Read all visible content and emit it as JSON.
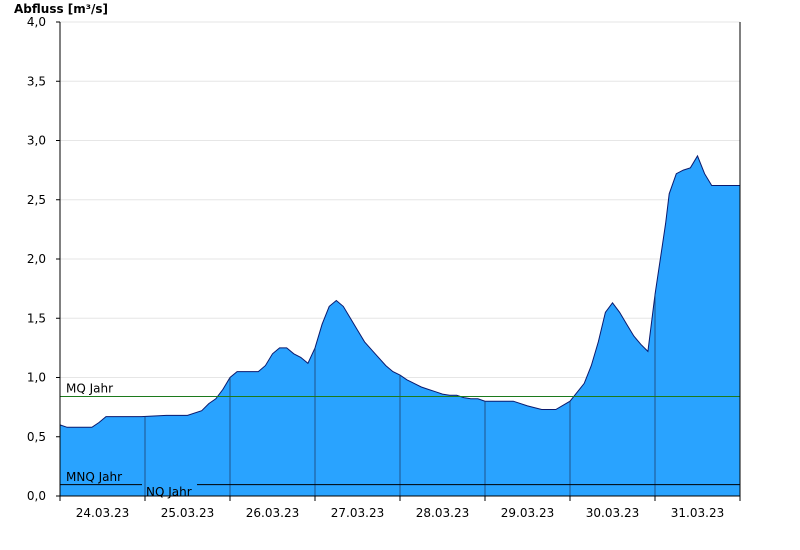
{
  "chart_data": {
    "type": "area",
    "ylabel": "Abfluss [m³/s]",
    "ylim": [
      0,
      4.0
    ],
    "yticks": [
      {
        "value": 0.0,
        "label": "0,0"
      },
      {
        "value": 0.5,
        "label": "0,5"
      },
      {
        "value": 1.0,
        "label": "1,0"
      },
      {
        "value": 1.5,
        "label": "1,5"
      },
      {
        "value": 2.0,
        "label": "2,0"
      },
      {
        "value": 2.5,
        "label": "2,5"
      },
      {
        "value": 3.0,
        "label": "3,0"
      },
      {
        "value": 3.5,
        "label": "3,5"
      },
      {
        "value": 4.0,
        "label": "4,0"
      }
    ],
    "x_start": "2023-03-24T00:00",
    "x_end": "2023-04-01T00:00",
    "xticks": [
      "24.03.23",
      "25.03.23",
      "26.03.23",
      "27.03.23",
      "28.03.23",
      "29.03.23",
      "30.03.23",
      "31.03.23"
    ],
    "grid": true,
    "fill_color": "#29a3ff",
    "line_color": "#0a1a6e",
    "reference_lines": [
      {
        "label": "MQ Jahr",
        "value": 0.84,
        "color": "#1c7a1c"
      },
      {
        "label": "MNQ Jahr",
        "value": 0.1,
        "color": "#000000"
      },
      {
        "label": "NQ Jahr",
        "value": 0.1,
        "color": "#000000"
      }
    ],
    "series": [
      {
        "x": [
          "2023-03-24T00:00",
          "2023-03-24T02:00",
          "2023-03-24T04:00",
          "2023-03-24T06:00",
          "2023-03-24T09:00",
          "2023-03-24T11:00",
          "2023-03-24T13:00",
          "2023-03-24T16:00",
          "2023-03-24T18:00",
          "2023-03-24T20:00",
          "2023-03-24T23:00",
          "2023-03-25T06:00",
          "2023-03-25T12:00",
          "2023-03-25T16:00",
          "2023-03-25T18:00",
          "2023-03-25T20:00",
          "2023-03-25T22:00",
          "2023-03-26T00:00",
          "2023-03-26T02:00",
          "2023-03-26T04:00",
          "2023-03-26T06:00",
          "2023-03-26T08:00",
          "2023-03-26T10:00",
          "2023-03-26T12:00",
          "2023-03-26T14:00",
          "2023-03-26T16:00",
          "2023-03-26T18:00",
          "2023-03-26T20:00",
          "2023-03-26T22:00",
          "2023-03-27T00:00",
          "2023-03-27T02:00",
          "2023-03-27T04:00",
          "2023-03-27T06:00",
          "2023-03-27T08:00",
          "2023-03-27T10:00",
          "2023-03-27T12:00",
          "2023-03-27T14:00",
          "2023-03-27T17:00",
          "2023-03-27T20:00",
          "2023-03-27T22:00",
          "2023-03-28T00:00",
          "2023-03-28T02:00",
          "2023-03-28T04:00",
          "2023-03-28T06:00",
          "2023-03-28T08:00",
          "2023-03-28T10:00",
          "2023-03-28T12:00",
          "2023-03-28T14:00",
          "2023-03-28T16:00",
          "2023-03-28T18:00",
          "2023-03-28T20:00",
          "2023-03-28T22:00",
          "2023-03-29T00:00",
          "2023-03-29T04:00",
          "2023-03-29T08:00",
          "2023-03-29T12:00",
          "2023-03-29T16:00",
          "2023-03-29T20:00",
          "2023-03-30T00:00",
          "2023-03-30T04:00",
          "2023-03-30T06:00",
          "2023-03-30T08:00",
          "2023-03-30T10:00",
          "2023-03-30T12:00",
          "2023-03-30T14:00",
          "2023-03-30T16:00",
          "2023-03-30T18:00",
          "2023-03-30T20:00",
          "2023-03-30T22:00",
          "2023-03-31T00:00",
          "2023-03-31T02:00",
          "2023-03-31T03:00",
          "2023-03-31T04:00",
          "2023-03-31T06:00",
          "2023-03-31T08:00",
          "2023-03-31T10:00",
          "2023-03-31T12:00",
          "2023-03-31T14:00",
          "2023-03-31T16:00",
          "2023-03-31T18:00",
          "2023-03-31T20:00",
          "2023-03-31T22:00",
          "2023-04-01T00:00"
        ],
        "y": [
          0.6,
          0.58,
          0.58,
          0.58,
          0.58,
          0.62,
          0.67,
          0.67,
          0.67,
          0.67,
          0.67,
          0.68,
          0.68,
          0.72,
          0.78,
          0.82,
          0.9,
          1.0,
          1.05,
          1.05,
          1.05,
          1.05,
          1.1,
          1.2,
          1.25,
          1.25,
          1.2,
          1.17,
          1.12,
          1.25,
          1.45,
          1.6,
          1.65,
          1.6,
          1.5,
          1.4,
          1.3,
          1.2,
          1.1,
          1.05,
          1.02,
          0.98,
          0.95,
          0.92,
          0.9,
          0.88,
          0.86,
          0.85,
          0.85,
          0.83,
          0.82,
          0.82,
          0.8,
          0.8,
          0.8,
          0.76,
          0.73,
          0.73,
          0.8,
          0.95,
          1.1,
          1.3,
          1.55,
          1.63,
          1.55,
          1.45,
          1.35,
          1.28,
          1.22,
          1.7,
          2.1,
          2.3,
          2.55,
          2.72,
          2.75,
          2.77,
          2.87,
          2.72,
          2.62,
          2.62,
          2.62,
          2.62,
          2.62
        ]
      }
    ]
  }
}
